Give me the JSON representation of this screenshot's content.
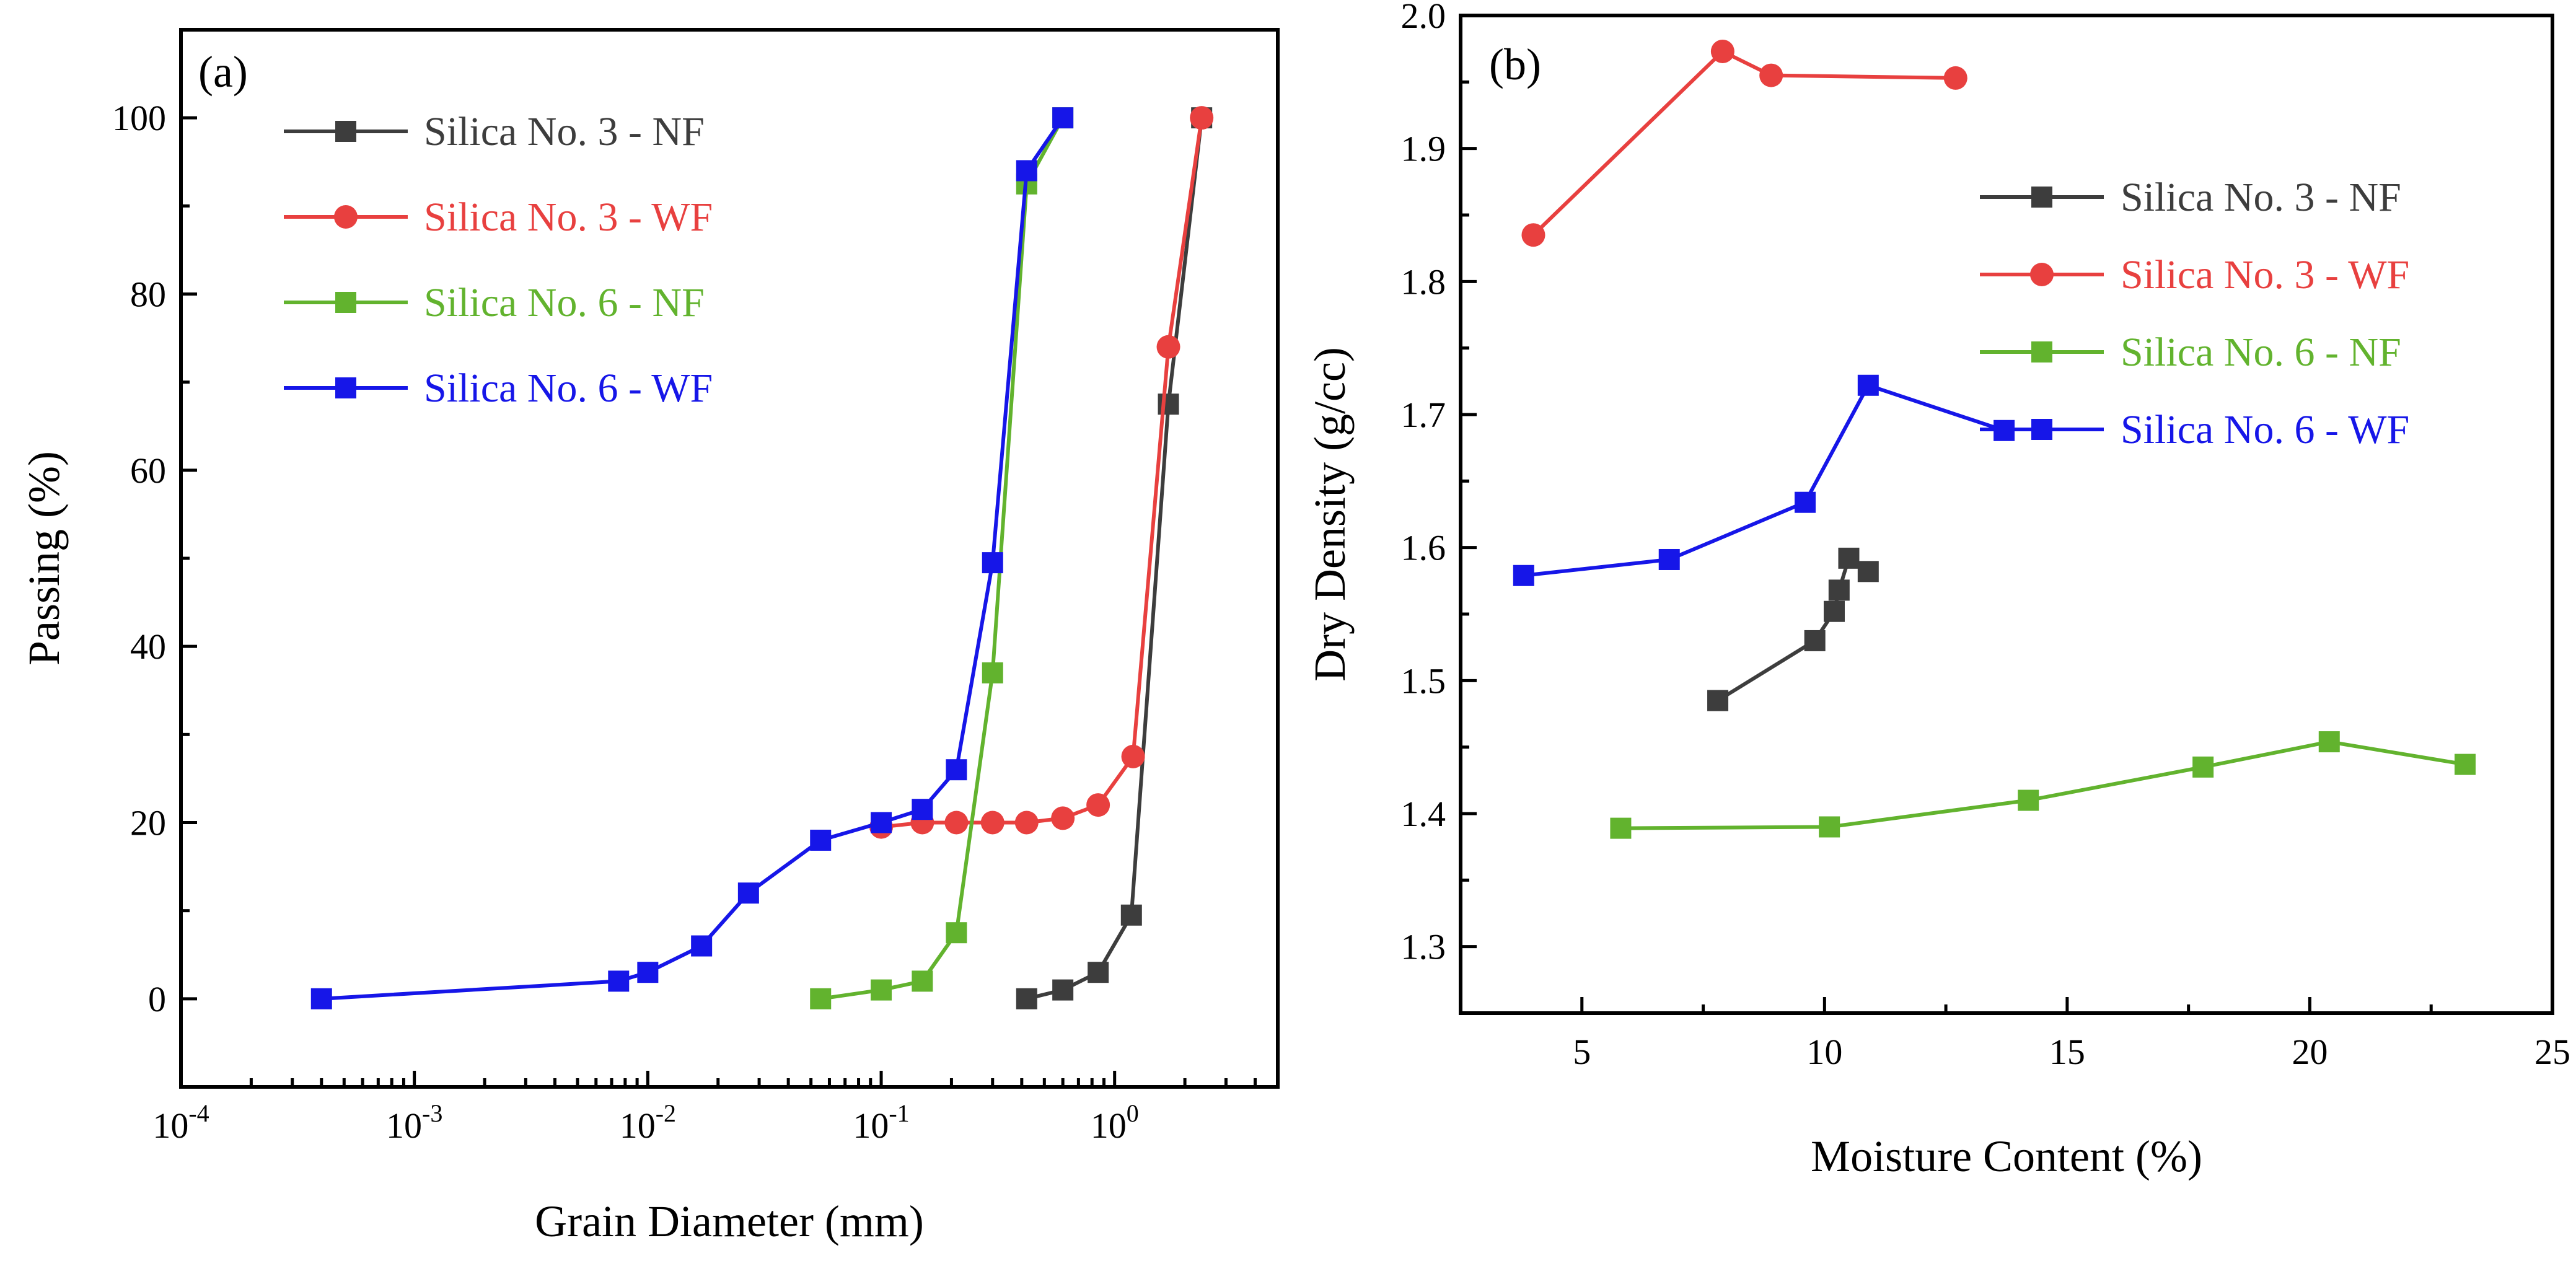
{
  "chart_data": [
    {
      "type": "line",
      "panel_label": "(a)",
      "xlabel": "Grain Diameter (mm)",
      "ylabel": "Passing (%)",
      "xscale": "log",
      "xlim": [
        0.0001,
        5
      ],
      "ylim": [
        -10,
        110
      ],
      "x_ticks": [
        {
          "value": 0.0001,
          "base": "10",
          "exp": "-4"
        },
        {
          "value": 0.001,
          "base": "10",
          "exp": "-3"
        },
        {
          "value": 0.01,
          "base": "10",
          "exp": "-2"
        },
        {
          "value": 0.1,
          "base": "10",
          "exp": "-1"
        },
        {
          "value": 1,
          "base": "10",
          "exp": "0"
        }
      ],
      "y_ticks": [
        "0",
        "20",
        "40",
        "60",
        "80",
        "100"
      ],
      "grid": false,
      "legend_position": "top-left",
      "series": [
        {
          "name": "Silica No. 3 - NF",
          "color": "#3d3d3d",
          "marker": "square",
          "x": [
            0.42,
            0.6,
            0.85,
            1.18,
            1.7,
            2.36
          ],
          "y": [
            0,
            1,
            3,
            9.5,
            67.5,
            100
          ]
        },
        {
          "name": "Silica No. 3 - WF",
          "color": "#e8403f",
          "marker": "circle",
          "x": [
            0.1,
            0.15,
            0.21,
            0.3,
            0.42,
            0.6,
            0.85,
            1.2,
            1.7,
            2.36
          ],
          "y": [
            19.5,
            20,
            20,
            20,
            20,
            20.5,
            22,
            27.5,
            74,
            100
          ]
        },
        {
          "name": "Silica No. 6 - NF",
          "color": "#62b32e",
          "marker": "square",
          "x": [
            0.055,
            0.1,
            0.15,
            0.21,
            0.3,
            0.42,
            0.6
          ],
          "y": [
            0,
            1,
            2,
            7.5,
            37,
            92.5,
            100
          ]
        },
        {
          "name": "Silica No. 6 - WF",
          "color": "#1616e8",
          "marker": "square",
          "x": [
            0.0004,
            0.0075,
            0.01,
            0.017,
            0.027,
            0.055,
            0.1,
            0.15,
            0.21,
            0.3,
            0.42,
            0.6
          ],
          "y": [
            0,
            2,
            3,
            6,
            12,
            18,
            20,
            21.5,
            26,
            49.5,
            94,
            100
          ]
        }
      ]
    },
    {
      "type": "line",
      "panel_label": "(b)",
      "xlabel": "Moisture Content (%)",
      "ylabel": "Dry Density (g/cc)",
      "xlim": [
        2.5,
        25
      ],
      "ylim": [
        1.25,
        2.0
      ],
      "x_ticks": [
        "5",
        "10",
        "15",
        "20",
        "25"
      ],
      "y_ticks": [
        "1.3",
        "1.4",
        "1.5",
        "1.6",
        "1.7",
        "1.8",
        "1.9",
        "2.0"
      ],
      "grid": false,
      "legend_position": "top-right",
      "series": [
        {
          "name": "Silica No. 3 - NF",
          "color": "#3d3d3d",
          "marker": "square",
          "x": [
            7.8,
            9.8,
            10.2,
            10.3,
            10.5,
            10.9
          ],
          "y": [
            1.485,
            1.53,
            1.552,
            1.568,
            1.592,
            1.582
          ]
        },
        {
          "name": "Silica No. 3 - WF",
          "color": "#e8403f",
          "marker": "circle",
          "x": [
            4.0,
            7.9,
            8.9,
            12.7
          ],
          "y": [
            1.835,
            1.973,
            1.955,
            1.953
          ]
        },
        {
          "name": "Silica No. 6 - NF",
          "color": "#62b32e",
          "marker": "square",
          "x": [
            5.8,
            10.1,
            14.2,
            17.8,
            20.4,
            23.2
          ],
          "y": [
            1.389,
            1.39,
            1.41,
            1.435,
            1.454,
            1.437
          ]
        },
        {
          "name": "Silica No. 6 - WF",
          "color": "#1616e8",
          "marker": "square",
          "x": [
            3.8,
            6.8,
            9.6,
            10.9,
            13.7
          ],
          "y": [
            1.579,
            1.591,
            1.634,
            1.722,
            1.688
          ]
        }
      ]
    }
  ]
}
